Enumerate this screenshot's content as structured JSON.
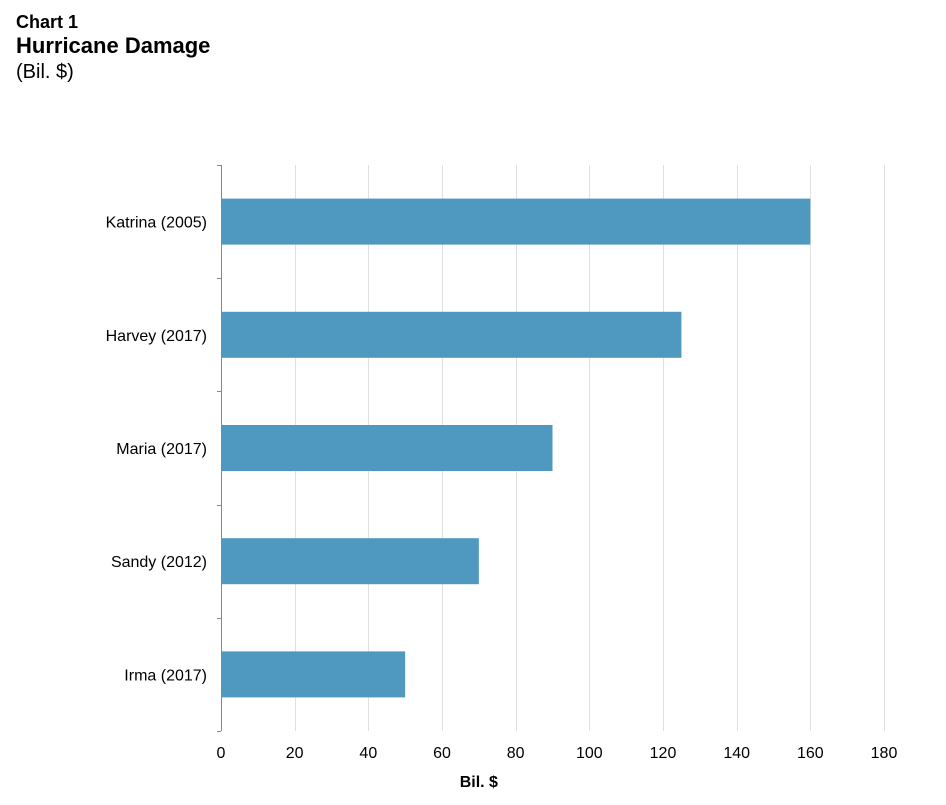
{
  "header": {
    "chart_number": "Chart 1",
    "title": "Hurricane Damage",
    "subtitle": "(Bil. $)"
  },
  "chart_data": {
    "type": "bar",
    "orientation": "horizontal",
    "title": "Hurricane Damage",
    "subtitle": "(Bil. $)",
    "categories": [
      "Katrina (2005)",
      "Harvey (2017)",
      "Maria (2017)",
      "Sandy (2012)",
      "Irma (2017)"
    ],
    "values": [
      160,
      125,
      90,
      70,
      50
    ],
    "xlabel": "Bil. $",
    "ylabel": "",
    "xlim": [
      0,
      180
    ],
    "xticks": [
      0,
      20,
      40,
      60,
      80,
      100,
      120,
      140,
      160,
      180
    ],
    "grid": "vertical",
    "legend": "none",
    "bar_color": "#4f98c0",
    "grid_color": "#e0e0e0",
    "axis_color": "#888888"
  }
}
